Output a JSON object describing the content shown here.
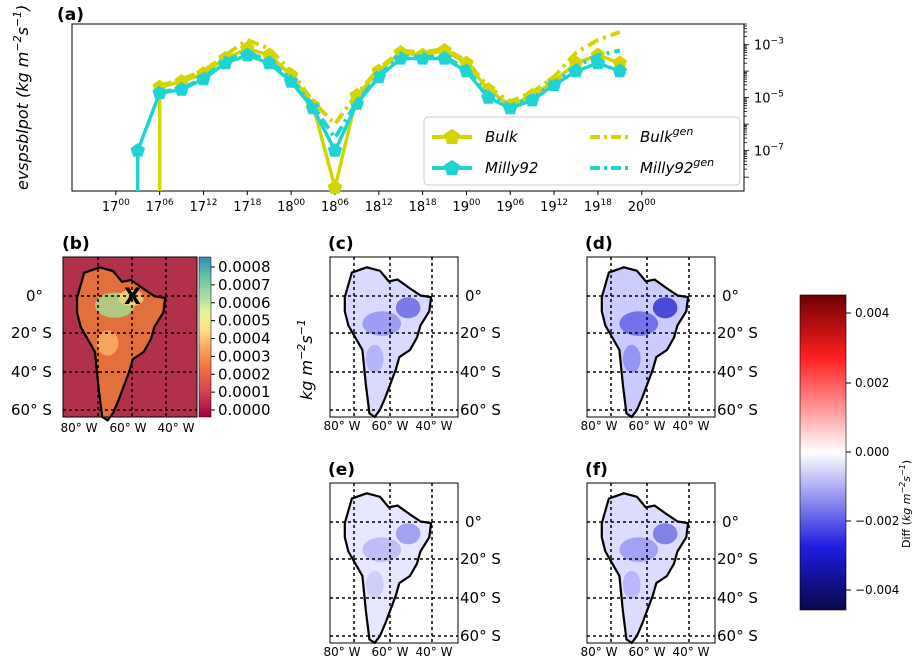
{
  "chart_data": [
    {
      "panel": "(a)",
      "type": "line",
      "ylabel": "evspsblpot (kg m$^{-2}$s$^{-1}$)",
      "ylabel_text": "evspsblpot (kg m",
      "ylabel_sup1": "−2",
      "ylabel_mid": "s",
      "ylabel_sup2": "−1",
      "ylabel_end": ")",
      "yscale": "log",
      "ylim": [
        3e-09,
        0.006
      ],
      "xlim": [
        -6,
        86
      ],
      "x_ticks": [
        {
          "x": 0,
          "base": "17",
          "sup": "00"
        },
        {
          "x": 6,
          "base": "17",
          "sup": "06"
        },
        {
          "x": 12,
          "base": "17",
          "sup": "12"
        },
        {
          "x": 18,
          "base": "17",
          "sup": "18"
        },
        {
          "x": 24,
          "base": "18",
          "sup": "00"
        },
        {
          "x": 30,
          "base": "18",
          "sup": "06"
        },
        {
          "x": 36,
          "base": "18",
          "sup": "12"
        },
        {
          "x": 42,
          "base": "18",
          "sup": "18"
        },
        {
          "x": 48,
          "base": "19",
          "sup": "00"
        },
        {
          "x": 54,
          "base": "19",
          "sup": "06"
        },
        {
          "x": 60,
          "base": "19",
          "sup": "12"
        },
        {
          "x": 66,
          "base": "19",
          "sup": "18"
        },
        {
          "x": 72,
          "base": "20",
          "sup": "00"
        }
      ],
      "y_ticks": [
        {
          "value": 0.001,
          "base": "10",
          "sup": "−3"
        },
        {
          "value": 1e-05,
          "base": "10",
          "sup": "−5"
        },
        {
          "value": 1e-07,
          "base": "10",
          "sup": "−7"
        }
      ],
      "series": [
        {
          "name": "Bulk",
          "color": "#d4d400",
          "style": "solid-marker",
          "x": [
            6,
            9,
            12,
            15,
            18,
            21,
            24,
            27,
            30,
            33,
            36,
            39,
            42,
            45,
            48,
            51,
            54,
            57,
            60,
            63,
            66,
            69
          ],
          "values": [
            2.5e-05,
            4e-05,
            8e-05,
            0.0003,
            0.0007,
            0.0004,
            7e-05,
            5e-06,
            4e-09,
            1.2e-05,
            0.0001,
            0.0005,
            0.0004,
            0.0006,
            0.0002,
            2e-05,
            5e-06,
            1.2e-05,
            4e-05,
            0.0002,
            0.0004,
            0.0002
          ],
          "drop_at_start": true
        },
        {
          "name": "Milly92",
          "color": "#1fd3d3",
          "style": "solid-marker",
          "x": [
            3,
            6,
            9,
            12,
            15,
            18,
            21,
            24,
            27,
            30,
            33,
            36,
            39,
            42,
            45,
            48,
            51,
            54,
            57,
            60,
            63,
            66,
            69
          ],
          "values": [
            1e-07,
            1.5e-05,
            2e-05,
            5e-05,
            0.0002,
            0.0004,
            0.0002,
            4e-05,
            4e-06,
            1e-07,
            6e-06,
            6e-05,
            0.0003,
            0.0003,
            0.0003,
            0.0001,
            1e-05,
            4e-06,
            8e-06,
            3e-05,
            0.0001,
            0.0002,
            0.0001
          ],
          "drop_at_start": true
        },
        {
          "name": "Bulk",
          "name_sup": "gen",
          "color": "#d4d400",
          "style": "dashdot",
          "x": [
            6,
            9,
            12,
            15,
            18,
            21,
            24,
            27,
            30,
            33,
            36,
            39,
            42,
            45,
            48,
            51,
            54,
            57,
            60,
            63,
            66,
            69
          ],
          "values": [
            2.8e-05,
            5e-05,
            0.0001,
            0.0004,
            0.0015,
            0.0007,
            0.0001,
            7e-06,
            1e-06,
            1.4e-05,
            0.00012,
            0.0006,
            0.0005,
            0.0007,
            0.00025,
            2.5e-05,
            7e-06,
            1.6e-05,
            6e-05,
            0.0005,
            0.0015,
            0.003
          ]
        },
        {
          "name": "Milly92",
          "name_sup": "gen",
          "color": "#1fd3d3",
          "style": "dashdot",
          "x": [
            6,
            9,
            12,
            15,
            18,
            21,
            24,
            27,
            30,
            33,
            36,
            39,
            42,
            45,
            48,
            51,
            54,
            57,
            60,
            63,
            66,
            69
          ],
          "values": [
            1.6e-05,
            2.2e-05,
            5.5e-05,
            0.00025,
            0.0005,
            0.00025,
            5e-05,
            5e-06,
            3e-07,
            7e-06,
            7e-05,
            0.00035,
            0.00035,
            0.00035,
            0.00012,
            1.2e-05,
            5e-06,
            9e-06,
            3.5e-05,
            0.00015,
            0.0004,
            0.0006
          ]
        }
      ],
      "legend_position": "lower right"
    },
    {
      "panel": "(b)",
      "type": "heatmap",
      "colorbar_label": "kg m$^{-2}$s$^{-1}$",
      "colorbar_ticks": [
        "0.0008",
        "0.0007",
        "0.0006",
        "0.0005",
        "0.0004",
        "0.0003",
        "0.0002",
        "0.0001",
        "0.0000"
      ],
      "lat_labels": [
        "0°",
        "20° S",
        "40° S",
        "60° S"
      ],
      "lon_labels": [
        "80° W",
        "60° W",
        "40° W"
      ],
      "marker": "X",
      "marker_color": "#2020c8"
    },
    {
      "panels": [
        "(c)",
        "(d)",
        "(e)",
        "(f)"
      ],
      "type": "heatmap",
      "colorbar_label": "Diff (kg m$^{-2}$s$^{-1}$)",
      "colorbar_label_text": "Diff (kg m",
      "colorbar_ticks": [
        "0.004",
        "0.002",
        "0.000",
        "−0.002",
        "−0.004"
      ],
      "lat_labels": [
        "0°",
        "20° S",
        "40° S",
        "60° S"
      ],
      "lon_labels": [
        "80° W",
        "60° W",
        "40° W"
      ],
      "intensity": {
        "(c)": 0.35,
        "(d)": 0.7,
        "(e)": 0.1,
        "(f)": 0.3
      }
    }
  ]
}
